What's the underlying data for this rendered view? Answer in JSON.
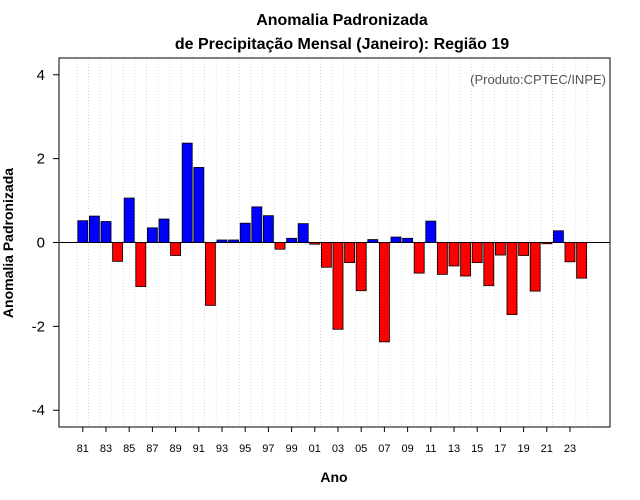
{
  "chart_data": {
    "type": "bar",
    "title": "Anomalia Padronizada",
    "subtitle": "de Precipitação Mensal (Janeiro): Região 19",
    "xlabel": "Ano",
    "ylabel": "Anomalia Padronizada",
    "credit": "(Produto:CPTEC/INPE)",
    "ylim": [
      -4.4,
      4.4
    ],
    "yticks": [
      -4,
      -2,
      0,
      2,
      4
    ],
    "ytick_labels": [
      "-4",
      "-2",
      "0",
      "2",
      "4"
    ],
    "grid": "vertical dotted",
    "categories": [
      "1981",
      "1982",
      "1983",
      "1984",
      "1985",
      "1986",
      "1987",
      "1988",
      "1989",
      "1990",
      "1991",
      "1992",
      "1993",
      "1994",
      "1995",
      "1996",
      "1997",
      "1998",
      "1999",
      "2000",
      "2001",
      "2002",
      "2003",
      "2004",
      "2005",
      "2006",
      "2007",
      "2008",
      "2009",
      "2010",
      "2011",
      "2012",
      "2013",
      "2014",
      "2015",
      "2016",
      "2017",
      "2018",
      "2019",
      "2020",
      "2021",
      "2022",
      "2023",
      "2024"
    ],
    "xtick_labels": [
      "81",
      "83",
      "85",
      "87",
      "89",
      "91",
      "93",
      "95",
      "97",
      "99",
      "01",
      "03",
      "05",
      "07",
      "09",
      "11",
      "13",
      "15",
      "17",
      "19",
      "21",
      "23"
    ],
    "values": [
      0.52,
      0.63,
      0.5,
      -0.45,
      1.06,
      -1.05,
      0.35,
      0.56,
      -0.31,
      2.37,
      1.79,
      -1.5,
      0.06,
      0.06,
      0.46,
      0.85,
      0.64,
      -0.16,
      0.1,
      0.45,
      -0.04,
      -0.59,
      -2.07,
      -0.48,
      -1.15,
      0.07,
      -2.37,
      0.13,
      0.1,
      -0.73,
      0.51,
      -0.76,
      -0.56,
      -0.8,
      -0.48,
      -1.03,
      -0.3,
      -1.72,
      -0.31,
      -1.16,
      -0.03,
      0.28,
      -0.46,
      -0.85
    ],
    "colors": {
      "positive": "#0000ff",
      "negative": "#ff0000",
      "outline": "#000000",
      "grid": "#d0d0d0"
    }
  }
}
